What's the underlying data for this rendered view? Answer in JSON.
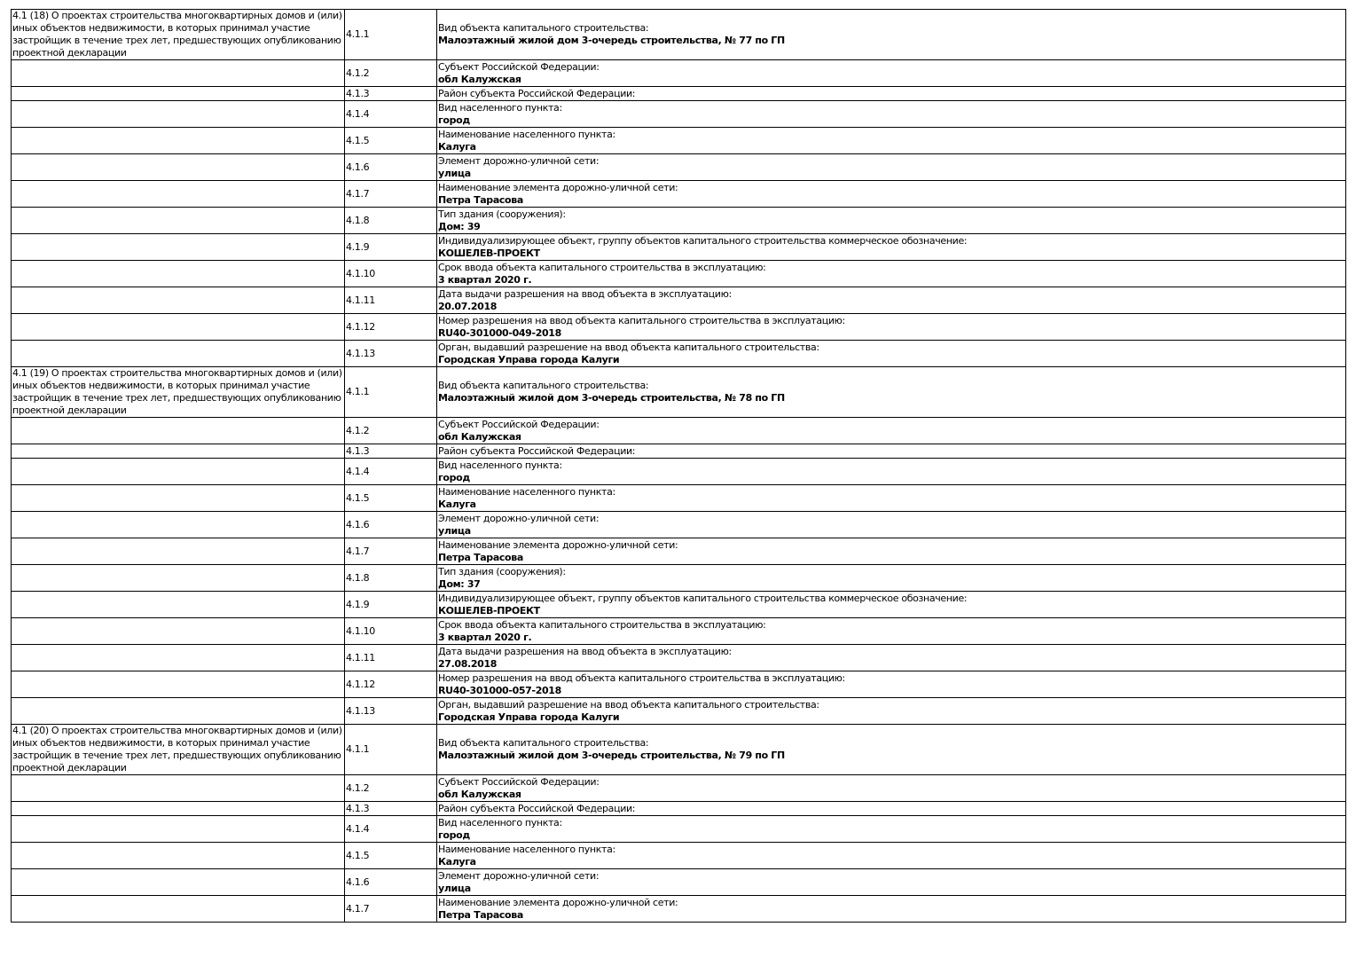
{
  "sections": [
    {
      "title": "4.1 (18) О проектах строительства многоквартирных домов и (или) иных объектов недвижимости, в которых принимал участие застройщик в течение трех лет, предшествующих опубликованию проектной декларации",
      "rows": [
        {
          "num": "4.1.1",
          "label": "Вид объекта капитального строительства:",
          "value": "Малоэтажный жилой дом 3-очередь строительства, № 77 по ГП"
        },
        {
          "num": "4.1.2",
          "label": "Субъект Российской Федерации:",
          "value": "обл Калужская"
        },
        {
          "num": "4.1.3",
          "label": "Район субъекта Российской Федерации:",
          "value": ""
        },
        {
          "num": "4.1.4",
          "label": "Вид населенного пункта:",
          "value": "город"
        },
        {
          "num": "4.1.5",
          "label": "Наименование населенного пункта:",
          "value": "Калуга"
        },
        {
          "num": "4.1.6",
          "label": "Элемент дорожно-уличной сети:",
          "value": "улица"
        },
        {
          "num": "4.1.7",
          "label": "Наименование элемента дорожно-уличной сети:",
          "value": "Петра Тарасова"
        },
        {
          "num": "4.1.8",
          "label": "Тип здания (сооружения):",
          "value": "Дом: 39"
        },
        {
          "num": "4.1.9",
          "label": "Индивидуализирующее объект, группу объектов капитального строительства коммерческое обозначение:",
          "value": "КОШЕЛЕВ-ПРОЕКТ"
        },
        {
          "num": "4.1.10",
          "label": "Срок ввода объекта капитального строительства в эксплуатацию:",
          "value": "3 квартал 2020 г."
        },
        {
          "num": "4.1.11",
          "label": "Дата выдачи разрешения на ввод объекта в эксплуатацию:",
          "value": "20.07.2018"
        },
        {
          "num": "4.1.12",
          "label": "Номер разрешения на ввод объекта капитального строительства в эксплуатацию:",
          "value": "RU40-301000-049-2018"
        },
        {
          "num": "4.1.13",
          "label": "Орган, выдавший разрешение на ввод объекта капитального строительства:",
          "value": "Городская Управа города Калуги"
        }
      ]
    },
    {
      "title": "4.1 (19) О проектах строительства многоквартирных домов и (или) иных объектов недвижимости, в которых принимал участие застройщик в течение трех лет, предшествующих опубликованию проектной декларации",
      "rows": [
        {
          "num": "4.1.1",
          "label": "Вид объекта капитального строительства:",
          "value": "Малоэтажный жилой дом 3-очередь строительства, № 78 по ГП"
        },
        {
          "num": "4.1.2",
          "label": "Субъект Российской Федерации:",
          "value": "обл Калужская"
        },
        {
          "num": "4.1.3",
          "label": "Район субъекта Российской Федерации:",
          "value": ""
        },
        {
          "num": "4.1.4",
          "label": "Вид населенного пункта:",
          "value": "город"
        },
        {
          "num": "4.1.5",
          "label": "Наименование населенного пункта:",
          "value": "Калуга"
        },
        {
          "num": "4.1.6",
          "label": "Элемент дорожно-уличной сети:",
          "value": "улица"
        },
        {
          "num": "4.1.7",
          "label": "Наименование элемента дорожно-уличной сети:",
          "value": "Петра Тарасова"
        },
        {
          "num": "4.1.8",
          "label": "Тип здания (сооружения):",
          "value": "Дом: 37"
        },
        {
          "num": "4.1.9",
          "label": "Индивидуализирующее объект, группу объектов капитального строительства коммерческое обозначение:",
          "value": "КОШЕЛЕВ-ПРОЕКТ"
        },
        {
          "num": "4.1.10",
          "label": "Срок ввода объекта капитального строительства в эксплуатацию:",
          "value": "3 квартал 2020 г."
        },
        {
          "num": "4.1.11",
          "label": "Дата выдачи разрешения на ввод объекта в эксплуатацию:",
          "value": "27.08.2018"
        },
        {
          "num": "4.1.12",
          "label": "Номер разрешения на ввод объекта капитального строительства в эксплуатацию:",
          "value": "RU40-301000-057-2018"
        },
        {
          "num": "4.1.13",
          "label": "Орган, выдавший разрешение на ввод объекта капитального строительства:",
          "value": "Городская Управа города Калуги"
        }
      ]
    },
    {
      "title": "4.1 (20) О проектах строительства многоквартирных домов и (или) иных объектов недвижимости, в которых принимал участие застройщик в течение трех лет, предшествующих опубликованию проектной декларации",
      "rows": [
        {
          "num": "4.1.1",
          "label": "Вид объекта капитального строительства:",
          "value": "Малоэтажный жилой дом 3-очередь строительства, № 79 по ГП"
        },
        {
          "num": "4.1.2",
          "label": "Субъект Российской Федерации:",
          "value": "обл Калужская"
        },
        {
          "num": "4.1.3",
          "label": "Район субъекта Российской Федерации:",
          "value": ""
        },
        {
          "num": "4.1.4",
          "label": "Вид населенного пункта:",
          "value": "город"
        },
        {
          "num": "4.1.5",
          "label": "Наименование населенного пункта:",
          "value": "Калуга"
        },
        {
          "num": "4.1.6",
          "label": "Элемент дорожно-уличной сети:",
          "value": "улица"
        },
        {
          "num": "4.1.7",
          "label": "Наименование элемента дорожно-уличной сети:",
          "value": "Петра Тарасова"
        }
      ]
    }
  ]
}
